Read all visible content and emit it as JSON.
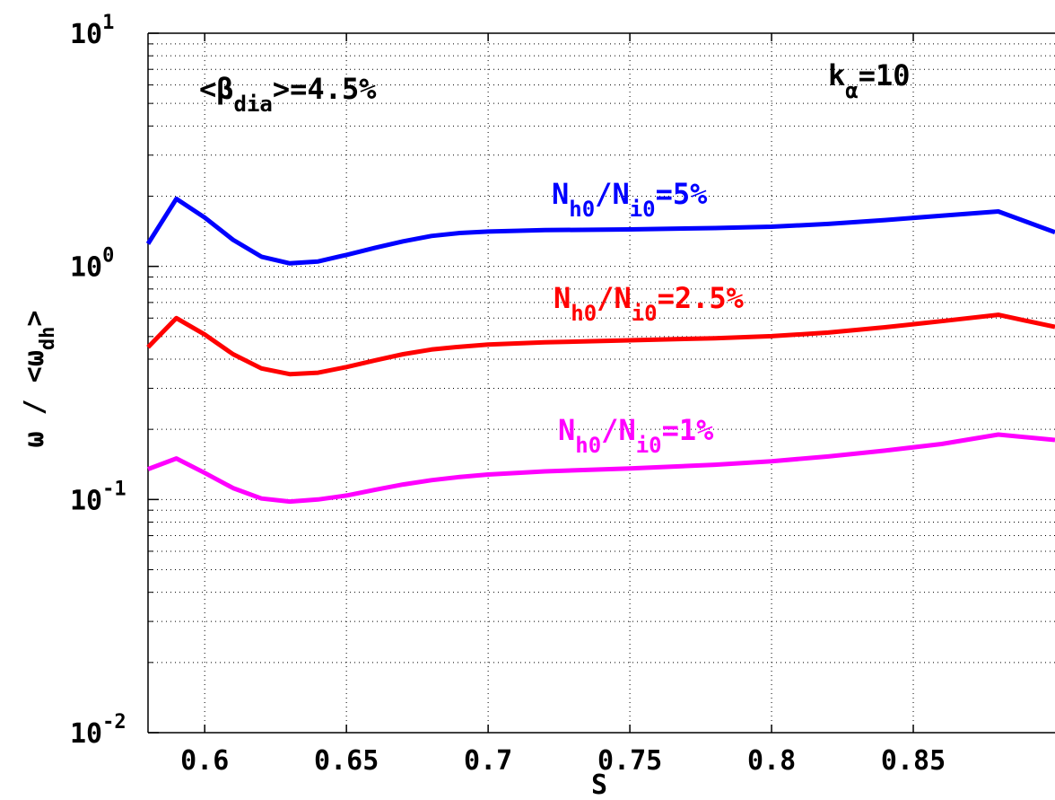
{
  "chart_data": {
    "type": "line",
    "title": "",
    "xlabel": "S",
    "ylabel": {
      "main": "ω  /  <ω",
      "sub": "dh",
      "close": ">"
    },
    "xlim": [
      0.58,
      0.9
    ],
    "ylim": [
      0.01,
      10
    ],
    "yscale": "log",
    "grid": true,
    "x_ticks": [
      {
        "value": 0.6,
        "label": "0.6"
      },
      {
        "value": 0.65,
        "label": "0.65"
      },
      {
        "value": 0.7,
        "label": "0.7"
      },
      {
        "value": 0.75,
        "label": "0.75"
      },
      {
        "value": 0.8,
        "label": "0.8"
      },
      {
        "value": 0.85,
        "label": "0.85"
      }
    ],
    "y_ticks": [
      {
        "value": 10,
        "base": "10",
        "exp": "1"
      },
      {
        "value": 1,
        "base": "10",
        "exp": "0"
      },
      {
        "value": 0.1,
        "base": "10",
        "exp": "-1"
      },
      {
        "value": 0.01,
        "base": "10",
        "exp": "-2"
      }
    ],
    "x": [
      0.58,
      0.59,
      0.6,
      0.61,
      0.62,
      0.63,
      0.64,
      0.65,
      0.66,
      0.67,
      0.68,
      0.69,
      0.7,
      0.72,
      0.75,
      0.78,
      0.8,
      0.82,
      0.84,
      0.86,
      0.88,
      0.9
    ],
    "series": [
      {
        "color": "#0000ff",
        "values": [
          1.25,
          1.95,
          1.62,
          1.3,
          1.1,
          1.03,
          1.05,
          1.12,
          1.2,
          1.28,
          1.35,
          1.39,
          1.41,
          1.43,
          1.44,
          1.46,
          1.48,
          1.52,
          1.58,
          1.65,
          1.72,
          1.4
        ]
      },
      {
        "color": "#ff0000",
        "values": [
          0.45,
          0.6,
          0.51,
          0.42,
          0.365,
          0.345,
          0.35,
          0.37,
          0.395,
          0.42,
          0.44,
          0.452,
          0.462,
          0.472,
          0.482,
          0.492,
          0.502,
          0.52,
          0.548,
          0.582,
          0.62,
          0.55
        ]
      },
      {
        "color": "#ff00ff",
        "values": [
          0.135,
          0.15,
          0.13,
          0.112,
          0.101,
          0.098,
          0.1,
          0.104,
          0.11,
          0.116,
          0.121,
          0.125,
          0.128,
          0.132,
          0.136,
          0.141,
          0.146,
          0.153,
          0.162,
          0.173,
          0.19,
          0.18
        ]
      }
    ],
    "annotations": [
      {
        "id": "beta",
        "color": "#000000",
        "parts": [
          {
            "t": "<β",
            "k": "n"
          },
          {
            "t": "dia",
            "k": "sub"
          },
          {
            "t": ">=4.5%",
            "k": "n"
          }
        ]
      },
      {
        "id": "kalpha",
        "color": "#000000",
        "parts": [
          {
            "t": "k",
            "k": "n"
          },
          {
            "t": "α",
            "k": "sub"
          },
          {
            "t": "=10",
            "k": "n"
          }
        ]
      },
      {
        "id": "label-5",
        "color": "#0000ff",
        "parts": [
          {
            "t": "N",
            "k": "n"
          },
          {
            "t": "h0",
            "k": "sub"
          },
          {
            "t": "/N",
            "k": "n"
          },
          {
            "t": "i0",
            "k": "sub"
          },
          {
            "t": "=5%",
            "k": "n"
          }
        ]
      },
      {
        "id": "label-2-5",
        "color": "#ff0000",
        "parts": [
          {
            "t": "N",
            "k": "n"
          },
          {
            "t": "h0",
            "k": "sub"
          },
          {
            "t": "/N",
            "k": "n"
          },
          {
            "t": "i0",
            "k": "sub"
          },
          {
            "t": "=2.5%",
            "k": "n"
          }
        ]
      },
      {
        "id": "label-1",
        "color": "#ff00ff",
        "parts": [
          {
            "t": "N",
            "k": "n"
          },
          {
            "t": "h0",
            "k": "sub"
          },
          {
            "t": "/N",
            "k": "n"
          },
          {
            "t": "i0",
            "k": "sub"
          },
          {
            "t": "=1%",
            "k": "n"
          }
        ]
      }
    ]
  }
}
